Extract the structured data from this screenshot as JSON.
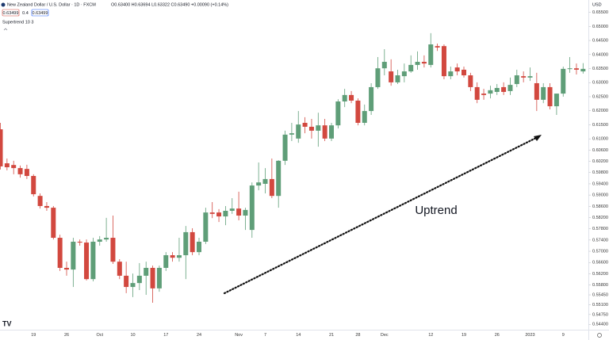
{
  "chart_data": {
    "type": "candlestick",
    "title": "New Zealand Dollar / U.S. Dollar · 1D · FXCM",
    "legend_ohlc": "O0.63400 H0.63694 L0.63322 C0.63490 +0.00090 (+0.14%)",
    "price_boxes": [
      "0.63499",
      "0.4",
      "0.63499"
    ],
    "indicator": "Supertrend 10 3",
    "currency": "USD",
    "annotation": "Uptrend",
    "up_color": "#5f9e78",
    "down_color": "#d2483f",
    "categories": [
      null,
      null,
      null,
      null,
      null,
      "19",
      null,
      null,
      null,
      null,
      "26",
      null,
      null,
      null,
      null,
      "Oct",
      null,
      null,
      null,
      null,
      "10",
      null,
      null,
      null,
      null,
      "17",
      null,
      null,
      null,
      null,
      "24",
      null,
      null,
      null,
      null,
      null,
      "Nov",
      null,
      null,
      null,
      "7",
      null,
      null,
      null,
      null,
      "14",
      null,
      null,
      null,
      null,
      "21",
      null,
      null,
      null,
      "28",
      null,
      null,
      null,
      "Dec",
      null,
      null,
      null,
      null,
      null,
      null,
      "12",
      null,
      null,
      null,
      null,
      "19",
      null,
      null,
      null,
      null,
      "26",
      null,
      null,
      null,
      null,
      "2023",
      null,
      null,
      null,
      null,
      "9",
      null,
      null,
      null
    ],
    "open": [
      0.6134,
      0.6013,
      0.6007,
      0.5996,
      0.5993,
      0.5968,
      0.5897,
      0.5861,
      0.5855,
      0.5748,
      0.5641,
      0.5635,
      0.5734,
      0.5731,
      0.5601,
      0.5734,
      0.5742,
      0.5748,
      0.5663,
      0.5613,
      0.5573,
      0.5587,
      0.5613,
      0.5641,
      0.5568,
      0.5641,
      0.5686,
      0.5677,
      0.5686,
      0.5768,
      0.5697,
      0.5734,
      0.5838,
      0.5838,
      0.5824,
      0.5844,
      0.5852,
      0.5827,
      0.5776,
      0.5934,
      0.594,
      0.5957,
      0.5897,
      0.6022,
      0.6115,
      0.6101,
      0.6157,
      0.6143,
      0.6129,
      0.6148,
      0.6101,
      0.6148,
      0.6233,
      0.6256,
      0.6236,
      0.6157,
      0.6199,
      0.6284,
      0.6351,
      0.634,
      0.6301,
      0.6323,
      0.634,
      0.6363,
      0.6374,
      0.6363,
      0.643,
      0.643,
      0.6323,
      0.6354,
      0.6346,
      0.6326,
      0.6284,
      0.6261,
      0.6261,
      0.6267,
      0.6284,
      0.627,
      0.6295,
      0.6323,
      0.6318,
      0.6298,
      0.6239,
      0.6284,
      0.6216,
      0.6261,
      0.6349,
      0.6351,
      0.634
    ],
    "high": [
      0.6157,
      0.603,
      0.6022,
      0.6005,
      0.6008,
      0.5974,
      0.5906,
      0.5875,
      0.5861,
      0.5759,
      0.5663,
      0.5748,
      0.5742,
      0.5742,
      0.5748,
      0.5754,
      0.5819,
      0.5827,
      0.5672,
      0.5663,
      0.5621,
      0.5658,
      0.5663,
      0.5649,
      0.5649,
      0.5697,
      0.5697,
      0.5748,
      0.579,
      0.5782,
      0.5748,
      0.5855,
      0.5875,
      0.585,
      0.5861,
      0.5889,
      0.5912,
      0.5855,
      0.5945,
      0.6016,
      0.5996,
      0.603,
      0.6024,
      0.6129,
      0.6157,
      0.6199,
      0.6177,
      0.6171,
      0.6193,
      0.6171,
      0.6157,
      0.6241,
      0.6278,
      0.627,
      0.6244,
      0.6222,
      0.6298,
      0.6391,
      0.6419,
      0.6383,
      0.6346,
      0.6368,
      0.6397,
      0.6411,
      0.6397,
      0.6476,
      0.6439,
      0.6436,
      0.6357,
      0.6368,
      0.6357,
      0.6335,
      0.6301,
      0.6278,
      0.6289,
      0.6295,
      0.6301,
      0.6318,
      0.6346,
      0.634,
      0.6354,
      0.6335,
      0.6298,
      0.6298,
      0.6261,
      0.6357,
      0.6391,
      0.6368,
      0.63694
    ],
    "low": [
      0.5991,
      0.5988,
      0.5974,
      0.5962,
      0.5957,
      0.5895,
      0.5852,
      0.5844,
      0.5742,
      0.563,
      0.5613,
      0.5573,
      0.572,
      0.5596,
      0.5593,
      0.572,
      0.5734,
      0.5655,
      0.5601,
      0.5551,
      0.5537,
      0.5562,
      0.5545,
      0.5517,
      0.5556,
      0.563,
      0.5663,
      0.5663,
      0.5601,
      0.5686,
      0.5686,
      0.5726,
      0.5818,
      0.5804,
      0.5793,
      0.5833,
      0.581,
      0.5776,
      0.5748,
      0.5917,
      0.5906,
      0.5889,
      0.5855,
      0.6007,
      0.6092,
      0.6086,
      0.612,
      0.6101,
      0.6072,
      0.6092,
      0.6092,
      0.6137,
      0.6213,
      0.6227,
      0.6148,
      0.6148,
      0.6185,
      0.6278,
      0.6326,
      0.6289,
      0.6295,
      0.6301,
      0.6335,
      0.6346,
      0.6354,
      0.6354,
      0.6413,
      0.6312,
      0.6312,
      0.6326,
      0.6318,
      0.627,
      0.6227,
      0.6239,
      0.6244,
      0.6256,
      0.6256,
      0.6256,
      0.6284,
      0.6301,
      0.6306,
      0.6199,
      0.6227,
      0.6205,
      0.6185,
      0.625,
      0.6335,
      0.6329,
      0.63322
    ],
    "close": [
      0.6002,
      0.5999,
      0.5996,
      0.5974,
      0.5968,
      0.5903,
      0.5861,
      0.5855,
      0.5748,
      0.5641,
      0.5635,
      0.5734,
      0.5731,
      0.5601,
      0.5734,
      0.5742,
      0.5748,
      0.5663,
      0.5613,
      0.5573,
      0.5587,
      0.5613,
      0.5641,
      0.5568,
      0.5641,
      0.5686,
      0.5677,
      0.5686,
      0.5768,
      0.5697,
      0.5734,
      0.5838,
      0.5833,
      0.5824,
      0.5844,
      0.5852,
      0.5827,
      0.5847,
      0.5934,
      0.5945,
      0.5957,
      0.5897,
      0.6022,
      0.6115,
      0.612,
      0.6151,
      0.6143,
      0.6129,
      0.6148,
      0.6101,
      0.6148,
      0.6233,
      0.6256,
      0.6236,
      0.6157,
      0.6199,
      0.6284,
      0.6351,
      0.6374,
      0.6301,
      0.6326,
      0.634,
      0.6363,
      0.6374,
      0.6368,
      0.6436,
      0.6425,
      0.6323,
      0.634,
      0.634,
      0.6326,
      0.6284,
      0.6239,
      0.6256,
      0.6273,
      0.6281,
      0.6267,
      0.6292,
      0.6326,
      0.6318,
      0.6323,
      0.6239,
      0.6284,
      0.6216,
      0.6261,
      0.6349,
      0.6351,
      0.6346,
      0.6349
    ],
    "ylim": [
      0.5421,
      0.6594
    ],
    "yticks": [
      {
        "value": 0.655,
        "label": "0.65500"
      },
      {
        "value": 0.65,
        "label": "0.65000"
      },
      {
        "value": 0.645,
        "label": "0.64500"
      },
      {
        "value": 0.64,
        "label": "0.64000"
      },
      {
        "value": 0.635,
        "label": "0.63500"
      },
      {
        "value": 0.63,
        "label": "0.63000"
      },
      {
        "value": 0.625,
        "label": "0.62500"
      },
      {
        "value": 0.62,
        "label": "0.62000"
      },
      {
        "value": 0.615,
        "label": "0.61500"
      },
      {
        "value": 0.61,
        "label": "0.61000"
      },
      {
        "value": 0.606,
        "label": "0.60600"
      },
      {
        "value": 0.602,
        "label": "0.60200"
      },
      {
        "value": 0.598,
        "label": "0.59800"
      },
      {
        "value": 0.594,
        "label": "0.59400"
      },
      {
        "value": 0.59,
        "label": "0.59000"
      },
      {
        "value": 0.586,
        "label": "0.58600"
      },
      {
        "value": 0.582,
        "label": "0.58200"
      },
      {
        "value": 0.578,
        "label": "0.57800"
      },
      {
        "value": 0.574,
        "label": "0.57400"
      },
      {
        "value": 0.57,
        "label": "0.57000"
      },
      {
        "value": 0.566,
        "label": "0.56600"
      },
      {
        "value": 0.562,
        "label": "0.56200"
      },
      {
        "value": 0.558,
        "label": "0.55800"
      },
      {
        "value": 0.5545,
        "label": "0.55450"
      },
      {
        "value": 0.551,
        "label": "0.55100"
      },
      {
        "value": 0.5475,
        "label": "0.54750"
      },
      {
        "value": 0.544,
        "label": "0.54400"
      }
    ],
    "grid": false
  }
}
